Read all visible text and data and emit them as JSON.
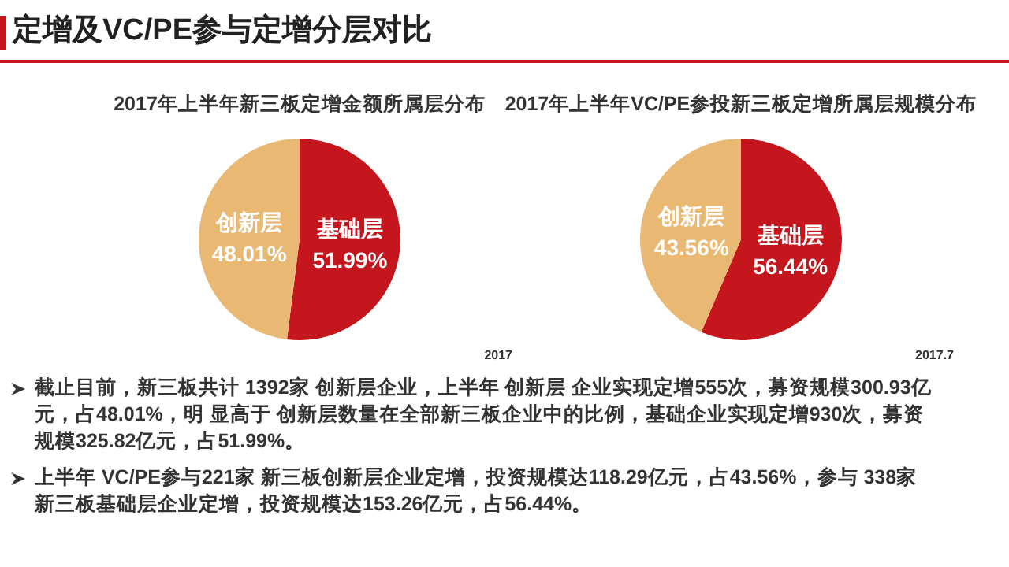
{
  "chart_data": [
    {
      "type": "other",
      "title": "定增及VC/PE参与定增分层对比"
    },
    {
      "type": "pie",
      "title": "2017年上半年新三板定增金额所属层分布",
      "categories": [
        "基础层",
        "创新层"
      ],
      "values": [
        51.99,
        48.01
      ],
      "colors": [
        "#c4161c",
        "#e9b872"
      ],
      "value_labels": [
        "51.99%",
        "48.01%"
      ],
      "annotations": [
        "2017"
      ]
    },
    {
      "type": "pie",
      "title": "2017年上半年VC/PE参投新三板定增所属层规模分布",
      "categories": [
        "基础层",
        "创新层"
      ],
      "values": [
        56.44,
        43.56
      ],
      "colors": [
        "#c4161c",
        "#e9b872"
      ],
      "value_labels": [
        "56.44%",
        "43.56%"
      ],
      "annotations": [
        "2017.7"
      ]
    },
    {
      "type": "other",
      "annotations": [
        "截止目前，新三板共计 1392家 创新层企业，上半年 创新层 企业实现定增555次，募资规模300.93亿元，占48.01%，明 显高于 创新层数量在全部新三板企业中的比例，基础企业实现定增930次，募资规模325.82亿元，占51.99%。",
        "上半年 VC/PE参与221家 新三板创新层企业定增，投资规模达118.29亿元，占43.56%，参与 338家新三板基础层企业定增，投资规模达153.26亿元，占56.44%。"
      ]
    }
  ]
}
